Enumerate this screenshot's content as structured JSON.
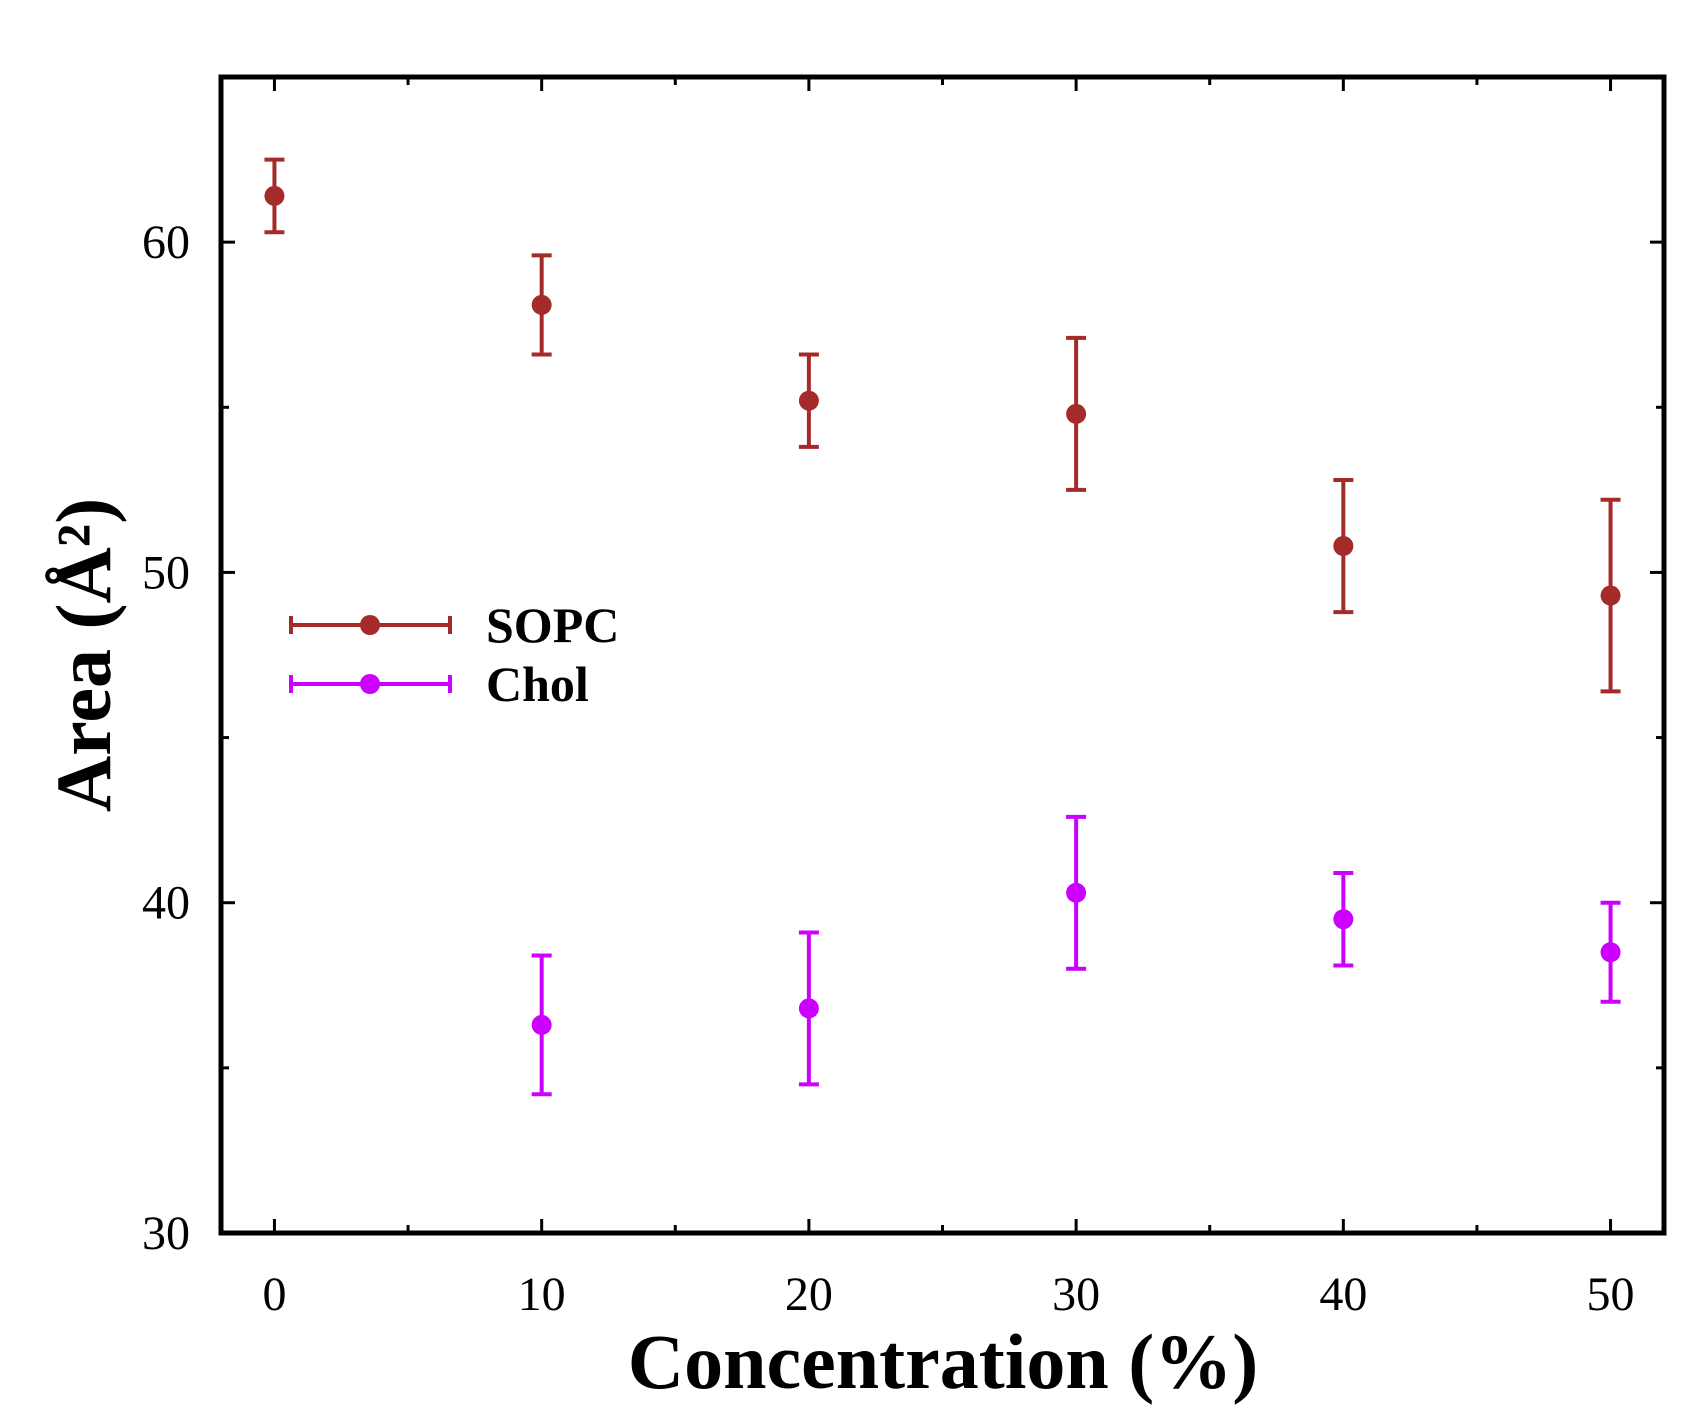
{
  "chart_data": {
    "type": "scatter",
    "title": "",
    "xlabel": "Concentration (%)",
    "ylabel": "Area (Å²)",
    "xlim": [
      -2,
      52
    ],
    "ylim": [
      30,
      65
    ],
    "xticks": [
      0,
      10,
      20,
      30,
      40,
      50
    ],
    "xtick_labels": [
      "0",
      "10",
      "20",
      "30",
      "40",
      "50"
    ],
    "yticks": [
      30,
      40,
      50,
      60
    ],
    "ytick_labels": [
      "30",
      "40",
      "50",
      "60"
    ],
    "x_minor_ticks": [
      5,
      15,
      25,
      35,
      45
    ],
    "y_minor_ticks": [
      35,
      45,
      55
    ],
    "grid": false,
    "legend_position": "left",
    "series": [
      {
        "name": "SOPC",
        "color": "#a52a2a",
        "x": [
          0,
          10,
          20,
          30,
          40,
          50
        ],
        "y": [
          61.4,
          58.1,
          55.2,
          54.8,
          50.8,
          49.3
        ],
        "yerr": [
          1.1,
          1.5,
          1.4,
          2.3,
          2.0,
          2.9
        ]
      },
      {
        "name": "Chol",
        "color": "#cc00ff",
        "x": [
          10,
          20,
          30,
          40,
          50
        ],
        "y": [
          36.3,
          36.8,
          40.3,
          39.5,
          38.5
        ],
        "yerr": [
          2.1,
          2.3,
          2.3,
          1.4,
          1.5
        ]
      }
    ]
  }
}
